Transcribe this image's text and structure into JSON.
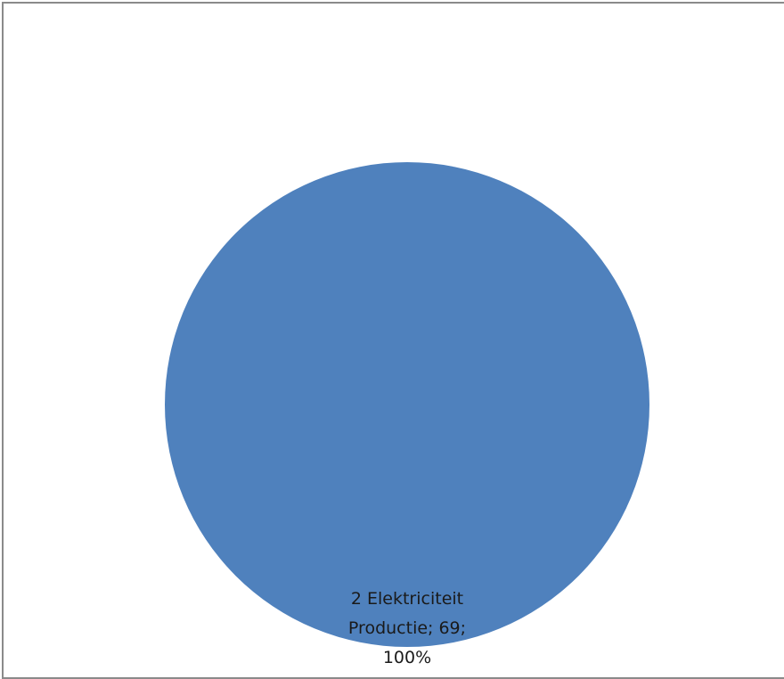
{
  "chart_data": {
    "type": "pie",
    "categories": [
      "2 Elektriciteit Productie"
    ],
    "values": [
      69
    ],
    "percentages": [
      "100%"
    ],
    "colors": [
      "#4f81bd"
    ],
    "data_labels": [
      {
        "lines": [
          "2 Elektriciteit",
          "Productie; 69;",
          "100%"
        ]
      }
    ],
    "legend": "none"
  }
}
